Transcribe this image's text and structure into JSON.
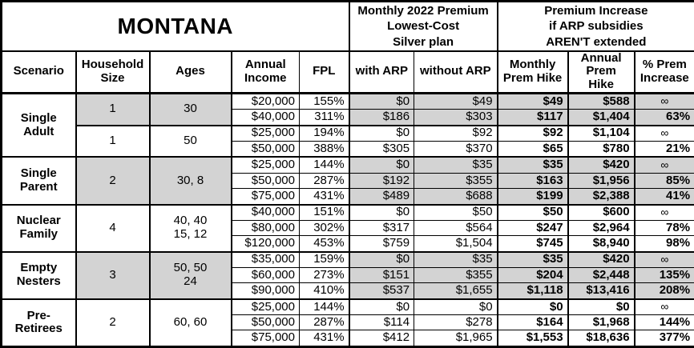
{
  "title": "MONTANA",
  "headers": {
    "premium": "Monthly 2022 Premium\nLowest-Cost\nSilver plan",
    "increase": "Premium Increase\nif ARP subsidies\nAREN'T extended"
  },
  "columns": [
    "Scenario",
    "Household\nSize",
    "Ages",
    "Annual\nIncome",
    "FPL",
    "with ARP",
    "without ARP",
    "Monthly\nPrem Hike",
    "Annual\nPrem Hike",
    "% Prem\nIncrease"
  ],
  "colors": {
    "shading": "#d3d3d3",
    "border": "#000000",
    "background": "#ffffff"
  },
  "groups": [
    {
      "scenario": "Single\nAdult",
      "subgroups": [
        {
          "household_size": "1",
          "ages": "30",
          "shaded": true,
          "rows": [
            {
              "income": "$20,000",
              "fpl": "155%",
              "with_arp": "$0",
              "without_arp": "$49",
              "monthly_hike": "$49",
              "annual_hike": "$588",
              "pct_increase": "∞"
            },
            {
              "income": "$40,000",
              "fpl": "311%",
              "with_arp": "$186",
              "without_arp": "$303",
              "monthly_hike": "$117",
              "annual_hike": "$1,404",
              "pct_increase": "63%"
            }
          ]
        },
        {
          "household_size": "1",
          "ages": "50",
          "shaded": false,
          "rows": [
            {
              "income": "$25,000",
              "fpl": "194%",
              "with_arp": "$0",
              "without_arp": "$92",
              "monthly_hike": "$92",
              "annual_hike": "$1,104",
              "pct_increase": "∞"
            },
            {
              "income": "$50,000",
              "fpl": "388%",
              "with_arp": "$305",
              "without_arp": "$370",
              "monthly_hike": "$65",
              "annual_hike": "$780",
              "pct_increase": "21%"
            }
          ]
        }
      ]
    },
    {
      "scenario": "Single\nParent",
      "subgroups": [
        {
          "household_size": "2",
          "ages": "30, 8",
          "shaded": true,
          "rows": [
            {
              "income": "$25,000",
              "fpl": "144%",
              "with_arp": "$0",
              "without_arp": "$35",
              "monthly_hike": "$35",
              "annual_hike": "$420",
              "pct_increase": "∞"
            },
            {
              "income": "$50,000",
              "fpl": "287%",
              "with_arp": "$192",
              "without_arp": "$355",
              "monthly_hike": "$163",
              "annual_hike": "$1,956",
              "pct_increase": "85%"
            },
            {
              "income": "$75,000",
              "fpl": "431%",
              "with_arp": "$489",
              "without_arp": "$688",
              "monthly_hike": "$199",
              "annual_hike": "$2,388",
              "pct_increase": "41%"
            }
          ]
        }
      ]
    },
    {
      "scenario": "Nuclear\nFamily",
      "subgroups": [
        {
          "household_size": "4",
          "ages": "40, 40\n15, 12",
          "shaded": false,
          "rows": [
            {
              "income": "$40,000",
              "fpl": "151%",
              "with_arp": "$0",
              "without_arp": "$50",
              "monthly_hike": "$50",
              "annual_hike": "$600",
              "pct_increase": "∞"
            },
            {
              "income": "$80,000",
              "fpl": "302%",
              "with_arp": "$317",
              "without_arp": "$564",
              "monthly_hike": "$247",
              "annual_hike": "$2,964",
              "pct_increase": "78%"
            },
            {
              "income": "$120,000",
              "fpl": "453%",
              "with_arp": "$759",
              "without_arp": "$1,504",
              "monthly_hike": "$745",
              "annual_hike": "$8,940",
              "pct_increase": "98%"
            }
          ]
        }
      ]
    },
    {
      "scenario": "Empty\nNesters",
      "subgroups": [
        {
          "household_size": "3",
          "ages": "50, 50\n24",
          "shaded": true,
          "rows": [
            {
              "income": "$35,000",
              "fpl": "159%",
              "with_arp": "$0",
              "without_arp": "$35",
              "monthly_hike": "$35",
              "annual_hike": "$420",
              "pct_increase": "∞"
            },
            {
              "income": "$60,000",
              "fpl": "273%",
              "with_arp": "$151",
              "without_arp": "$355",
              "monthly_hike": "$204",
              "annual_hike": "$2,448",
              "pct_increase": "135%"
            },
            {
              "income": "$90,000",
              "fpl": "410%",
              "with_arp": "$537",
              "without_arp": "$1,655",
              "monthly_hike": "$1,118",
              "annual_hike": "$13,416",
              "pct_increase": "208%"
            }
          ]
        }
      ]
    },
    {
      "scenario": "Pre-\nRetirees",
      "subgroups": [
        {
          "household_size": "2",
          "ages": "60, 60",
          "shaded": false,
          "rows": [
            {
              "income": "$25,000",
              "fpl": "144%",
              "with_arp": "$0",
              "without_arp": "$0",
              "monthly_hike": "$0",
              "annual_hike": "$0",
              "pct_increase": "∞"
            },
            {
              "income": "$50,000",
              "fpl": "287%",
              "with_arp": "$114",
              "without_arp": "$278",
              "monthly_hike": "$164",
              "annual_hike": "$1,968",
              "pct_increase": "144%"
            },
            {
              "income": "$75,000",
              "fpl": "431%",
              "with_arp": "$412",
              "without_arp": "$1,965",
              "monthly_hike": "$1,553",
              "annual_hike": "$18,636",
              "pct_increase": "377%"
            }
          ]
        }
      ]
    }
  ],
  "chart_data": {
    "type": "table",
    "title": "MONTANA",
    "column_groups": [
      "Monthly 2022 Premium Lowest-Cost Silver plan",
      "Premium Increase if ARP subsidies AREN'T extended"
    ],
    "columns": [
      "Scenario",
      "Household Size",
      "Ages",
      "Annual Income",
      "FPL",
      "with ARP",
      "without ARP",
      "Monthly Prem Hike",
      "Annual Prem Hike",
      "% Prem Increase"
    ],
    "rows": [
      [
        "Single Adult",
        "1",
        "30",
        "$20,000",
        "155%",
        "$0",
        "$49",
        "$49",
        "$588",
        "∞"
      ],
      [
        "Single Adult",
        "1",
        "30",
        "$40,000",
        "311%",
        "$186",
        "$303",
        "$117",
        "$1,404",
        "63%"
      ],
      [
        "Single Adult",
        "1",
        "50",
        "$25,000",
        "194%",
        "$0",
        "$92",
        "$92",
        "$1,104",
        "∞"
      ],
      [
        "Single Adult",
        "1",
        "50",
        "$50,000",
        "388%",
        "$305",
        "$370",
        "$65",
        "$780",
        "21%"
      ],
      [
        "Single Parent",
        "2",
        "30, 8",
        "$25,000",
        "144%",
        "$0",
        "$35",
        "$35",
        "$420",
        "∞"
      ],
      [
        "Single Parent",
        "2",
        "30, 8",
        "$50,000",
        "287%",
        "$192",
        "$355",
        "$163",
        "$1,956",
        "85%"
      ],
      [
        "Single Parent",
        "2",
        "30, 8",
        "$75,000",
        "431%",
        "$489",
        "$688",
        "$199",
        "$2,388",
        "41%"
      ],
      [
        "Nuclear Family",
        "4",
        "40, 40, 15, 12",
        "$40,000",
        "151%",
        "$0",
        "$50",
        "$50",
        "$600",
        "∞"
      ],
      [
        "Nuclear Family",
        "4",
        "40, 40, 15, 12",
        "$80,000",
        "302%",
        "$317",
        "$564",
        "$247",
        "$2,964",
        "78%"
      ],
      [
        "Nuclear Family",
        "4",
        "40, 40, 15, 12",
        "$120,000",
        "453%",
        "$759",
        "$1,504",
        "$745",
        "$8,940",
        "98%"
      ],
      [
        "Empty Nesters",
        "3",
        "50, 50, 24",
        "$35,000",
        "159%",
        "$0",
        "$35",
        "$35",
        "$420",
        "∞"
      ],
      [
        "Empty Nesters",
        "3",
        "50, 50, 24",
        "$60,000",
        "273%",
        "$151",
        "$355",
        "$204",
        "$2,448",
        "135%"
      ],
      [
        "Empty Nesters",
        "3",
        "50, 50, 24",
        "$90,000",
        "410%",
        "$537",
        "$1,655",
        "$1,118",
        "$13,416",
        "208%"
      ],
      [
        "Pre-Retirees",
        "2",
        "60, 60",
        "$25,000",
        "144%",
        "$0",
        "$0",
        "$0",
        "$0",
        "∞"
      ],
      [
        "Pre-Retirees",
        "2",
        "60, 60",
        "$50,000",
        "287%",
        "$114",
        "$278",
        "$164",
        "$1,968",
        "144%"
      ],
      [
        "Pre-Retirees",
        "2",
        "60, 60",
        "$75,000",
        "431%",
        "$412",
        "$1,965",
        "$1,553",
        "$18,636",
        "377%"
      ]
    ]
  }
}
